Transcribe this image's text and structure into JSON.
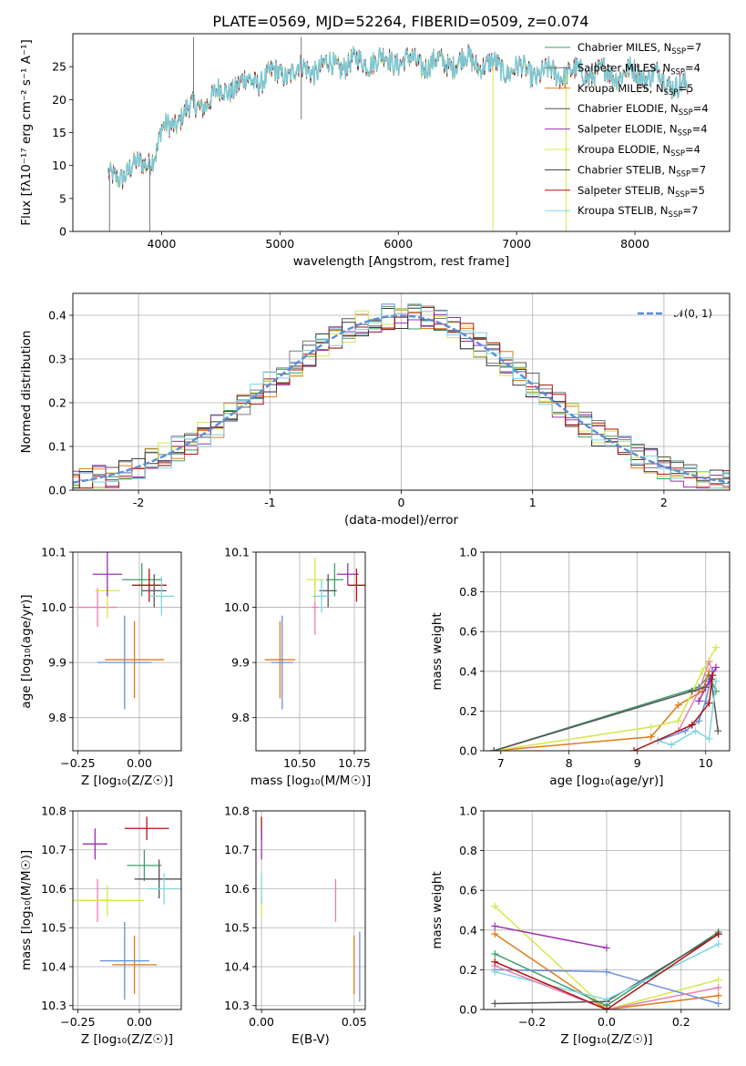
{
  "figure_title": "PLATE=0569, MJD=52264, FIBERID=0509, z=0.074",
  "models": [
    {
      "name": "Chabrier MILES",
      "nssp": "7",
      "color": "#3d9e6b"
    },
    {
      "name": "Salpeter MILES",
      "nssp": "4",
      "color": "#7a7a7a"
    },
    {
      "name": "Kroupa MILES",
      "nssp": "5",
      "color": "#e07b1a"
    },
    {
      "name": "Chabrier ELODIE",
      "nssp": "4",
      "color": "#555555"
    },
    {
      "name": "Salpeter ELODIE",
      "nssp": "4",
      "color": "#9b30b0"
    },
    {
      "name": "Kroupa ELODIE",
      "nssp": "4",
      "color": "#d4e84a"
    },
    {
      "name": "Chabrier STELIB",
      "nssp": "7",
      "color": "#3a3a3a"
    },
    {
      "name": "Salpeter STELIB",
      "nssp": "5",
      "color": "#b01010"
    },
    {
      "name": "Kroupa STELIB",
      "nssp": "7",
      "color": "#7fd6e0"
    }
  ],
  "extra_colors": {
    "pink": "#e87fb0",
    "blue": "#6b8fd8",
    "normal_line": "#5b8ed6"
  },
  "chart_data": [
    {
      "id": "spectrum",
      "type": "line",
      "xlabel": "wavelength [Angstrom, rest frame]",
      "ylabel_text": "Flux [fλ10⁻¹⁷ erg cm⁻² s⁻¹ A⁻¹]",
      "xlim": [
        3250,
        8800
      ],
      "ylim": [
        0,
        30
      ],
      "xticks": [
        4000,
        5000,
        6000,
        7000,
        8000
      ],
      "yticks": [
        0,
        5,
        10,
        15,
        20,
        25
      ],
      "continuum_x": [
        3550,
        3700,
        3900,
        3960,
        4000,
        4200,
        4400,
        4600,
        4800,
        5000,
        5200,
        5400,
        5600,
        5800,
        6000,
        6200,
        6400,
        6600,
        6800,
        7000,
        7200,
        7400,
        7600,
        7800,
        8000,
        8200,
        8450
      ],
      "continuum_y": [
        8,
        9,
        11,
        12,
        15,
        18,
        20,
        22,
        23,
        24,
        24.5,
        25,
        25.5,
        26,
        26,
        25.5,
        25.5,
        26,
        25,
        24.5,
        24,
        24,
        24,
        24,
        24,
        23.5,
        21.5
      ],
      "spikes": [
        {
          "x": 3560,
          "y": 0
        },
        {
          "x": 3900,
          "y": 0
        },
        {
          "x": 4270,
          "y": 29.5
        },
        {
          "x": 5180,
          "y": 29.5
        },
        {
          "x": 5180,
          "y": 17
        },
        {
          "x": 6800,
          "y": 0
        },
        {
          "x": 7420,
          "y": 0
        }
      ]
    },
    {
      "id": "residuals",
      "type": "bar",
      "xlabel": "(data-model)/error",
      "ylabel": "Normed distribution",
      "xlim": [
        -2.5,
        2.5
      ],
      "ylim": [
        0,
        0.45
      ],
      "xticks": [
        -2,
        -1,
        0,
        1,
        2
      ],
      "yticks": [
        0.0,
        0.1,
        0.2,
        0.3,
        0.4
      ],
      "bin_width": 0.1,
      "normal_label": "𝒩(0, 1)"
    },
    {
      "id": "age_vs_Z",
      "type": "scatter",
      "xlabel": "Z [log₁₀(Z/Z☉)]",
      "ylabel": "age  [log₁₀(age/yr)]",
      "xlim": [
        -0.27,
        0.17
      ],
      "ylim": [
        9.74,
        10.1
      ],
      "xticks": [
        -0.25,
        0.0
      ],
      "yticks": [
        9.8,
        9.9,
        10.0,
        10.1
      ],
      "points": [
        {
          "x": -0.02,
          "y": 9.905,
          "xerr": 0.12,
          "yerr": 0.07,
          "color": "#e07b1a"
        },
        {
          "x": -0.06,
          "y": 9.9,
          "xerr": 0.11,
          "yerr": 0.085,
          "color": "#6b8fd8"
        },
        {
          "x": -0.17,
          "y": 10.0,
          "xerr": 0.08,
          "yerr": 0.035,
          "color": "#e87fb0"
        },
        {
          "x": -0.13,
          "y": 10.03,
          "xerr": 0.05,
          "yerr": 0.05,
          "color": "#d4e84a"
        },
        {
          "x": -0.13,
          "y": 10.06,
          "xerr": 0.06,
          "yerr": 0.04,
          "color": "#9b30b0"
        },
        {
          "x": 0.01,
          "y": 10.05,
          "xerr": 0.08,
          "yerr": 0.03,
          "color": "#3d9e6b"
        },
        {
          "x": 0.04,
          "y": 10.04,
          "xerr": 0.07,
          "yerr": 0.03,
          "color": "#b01010"
        },
        {
          "x": 0.06,
          "y": 10.03,
          "xerr": 0.05,
          "yerr": 0.03,
          "color": "#555555"
        },
        {
          "x": 0.09,
          "y": 10.02,
          "xerr": 0.05,
          "yerr": 0.035,
          "color": "#7fd6e0"
        }
      ]
    },
    {
      "id": "age_vs_mass",
      "type": "scatter",
      "xlabel": "mass [log₁₀(M/M☉)]",
      "ylabel": "",
      "xlim": [
        10.3,
        10.8
      ],
      "ylim": [
        9.74,
        10.1
      ],
      "xticks": [
        10.5,
        10.75
      ],
      "yticks": [
        9.8,
        9.9,
        10.0,
        10.1
      ],
      "xticklabels": [
        "10.50",
        "10.75"
      ],
      "points": [
        {
          "x": 10.41,
          "y": 9.905,
          "xerr": 0.07,
          "yerr": 0.07,
          "color": "#e07b1a"
        },
        {
          "x": 10.42,
          "y": 9.9,
          "xerr": 0.05,
          "yerr": 0.085,
          "color": "#6b8fd8"
        },
        {
          "x": 10.57,
          "y": 10.0,
          "xerr": 0.015,
          "yerr": 0.05,
          "color": "#e87fb0"
        },
        {
          "x": 10.57,
          "y": 10.05,
          "xerr": 0.04,
          "yerr": 0.04,
          "color": "#d4e84a"
        },
        {
          "x": 10.72,
          "y": 10.06,
          "xerr": 0.05,
          "yerr": 0.02,
          "color": "#9b30b0"
        },
        {
          "x": 10.66,
          "y": 10.05,
          "xerr": 0.04,
          "yerr": 0.03,
          "color": "#3d9e6b"
        },
        {
          "x": 10.76,
          "y": 10.04,
          "xerr": 0.04,
          "yerr": 0.03,
          "color": "#b01010"
        },
        {
          "x": 10.63,
          "y": 10.03,
          "xerr": 0.04,
          "yerr": 0.03,
          "color": "#555555"
        },
        {
          "x": 10.6,
          "y": 10.02,
          "xerr": 0.04,
          "yerr": 0.03,
          "color": "#7fd6e0"
        }
      ]
    },
    {
      "id": "weight_vs_age",
      "type": "line",
      "xlabel": "age  [log₁₀(age/yr)]",
      "ylabel": "mass weight",
      "xlim": [
        6.75,
        10.35
      ],
      "ylim": [
        0,
        1
      ],
      "xticks": [
        7,
        8,
        9,
        10
      ],
      "yticks": [
        0.0,
        0.2,
        0.4,
        0.6,
        0.8,
        1.0
      ],
      "series": [
        {
          "color": "#3d9e6b",
          "x": [
            6.9,
            9.9,
            10.05,
            10.15
          ],
          "y": [
            0.0,
            0.32,
            0.38,
            0.3
          ]
        },
        {
          "color": "#e87fb0",
          "x": [
            9.6,
            9.9,
            10.05,
            10.1
          ],
          "y": [
            0.1,
            0.3,
            0.45,
            0.4
          ]
        },
        {
          "color": "#e07b1a",
          "x": [
            6.9,
            9.2,
            9.6,
            9.95,
            10.05
          ],
          "y": [
            0.0,
            0.07,
            0.23,
            0.3,
            0.4
          ]
        },
        {
          "color": "#d4e84a",
          "x": [
            6.9,
            9.2,
            9.6,
            9.95,
            10.15
          ],
          "y": [
            0.0,
            0.12,
            0.15,
            0.4,
            0.52
          ]
        },
        {
          "color": "#6b8fd8",
          "x": [
            9.3,
            9.7,
            9.9,
            10.0,
            10.1
          ],
          "y": [
            0.05,
            0.1,
            0.15,
            0.25,
            0.4
          ]
        },
        {
          "color": "#555555",
          "x": [
            6.9,
            9.8,
            10.0,
            10.08,
            10.18
          ],
          "y": [
            0.0,
            0.3,
            0.32,
            0.36,
            0.1
          ]
        },
        {
          "color": "#7fd6e0",
          "x": [
            9.3,
            9.5,
            9.85,
            10.05,
            10.15
          ],
          "y": [
            0.05,
            0.03,
            0.1,
            0.06,
            0.35
          ]
        },
        {
          "color": "#9b30b0",
          "x": [
            9.9,
            10.05,
            10.15
          ],
          "y": [
            0.25,
            0.35,
            0.42
          ]
        },
        {
          "color": "#b01010",
          "x": [
            8.95,
            9.8,
            10.05,
            10.1
          ],
          "y": [
            0.0,
            0.13,
            0.24,
            0.38
          ]
        }
      ]
    },
    {
      "id": "mass_vs_Z",
      "type": "scatter",
      "xlabel": "Z [log₁₀(Z/Z☉)]",
      "ylabel": "mass [log₁₀(M/M☉)]",
      "xlim": [
        -0.27,
        0.17
      ],
      "ylim": [
        10.29,
        10.8
      ],
      "xticks": [
        -0.25,
        0.0
      ],
      "yticks": [
        10.3,
        10.4,
        10.5,
        10.6,
        10.7,
        10.8
      ],
      "points": [
        {
          "x": -0.02,
          "y": 10.405,
          "xerr": 0.09,
          "yerr": 0.075,
          "color": "#e07b1a"
        },
        {
          "x": -0.06,
          "y": 10.415,
          "xerr": 0.1,
          "yerr": 0.1,
          "color": "#6b8fd8"
        },
        {
          "x": -0.17,
          "y": 10.57,
          "xerr": 0.06,
          "yerr": 0.055,
          "color": "#e87fb0"
        },
        {
          "x": -0.13,
          "y": 10.57,
          "xerr": 0.15,
          "yerr": 0.04,
          "color": "#d4e84a"
        },
        {
          "x": -0.18,
          "y": 10.715,
          "xerr": 0.05,
          "yerr": 0.04,
          "color": "#9b30b0"
        },
        {
          "x": 0.02,
          "y": 10.66,
          "xerr": 0.07,
          "yerr": 0.04,
          "color": "#3d9e6b"
        },
        {
          "x": 0.03,
          "y": 10.755,
          "xerr": 0.09,
          "yerr": 0.03,
          "color": "#b01010"
        },
        {
          "x": 0.08,
          "y": 10.625,
          "xerr": 0.1,
          "yerr": 0.05,
          "color": "#555555"
        },
        {
          "x": 0.1,
          "y": 10.6,
          "xerr": 0.07,
          "yerr": 0.04,
          "color": "#7fd6e0"
        }
      ]
    },
    {
      "id": "mass_vs_EBV",
      "type": "scatter",
      "xlabel": "E(B-V)",
      "ylabel": "",
      "xlim": [
        -0.003,
        0.056
      ],
      "ylim": [
        10.29,
        10.8
      ],
      "xticks": [
        0.0,
        0.05
      ],
      "yticks": [
        10.3,
        10.4,
        10.5,
        10.6,
        10.7,
        10.8
      ],
      "xticklabels": [
        "0.00",
        "0.05"
      ],
      "points": [
        {
          "x": 0.0,
          "y": 10.755,
          "xerr": 0,
          "yerr": 0.03,
          "color": "#b01010"
        },
        {
          "x": 0.0,
          "y": 10.715,
          "xerr": 0,
          "yerr": 0.04,
          "color": "#9b30b0"
        },
        {
          "x": 0.0,
          "y": 10.57,
          "xerr": 0,
          "yerr": 0.04,
          "color": "#d4e84a"
        },
        {
          "x": 0.0,
          "y": 10.6,
          "xerr": 0,
          "yerr": 0.04,
          "color": "#7fd6e0"
        },
        {
          "x": 0.04,
          "y": 10.57,
          "xerr": 0,
          "yerr": 0.055,
          "color": "#e87fb0"
        },
        {
          "x": 0.05,
          "y": 10.405,
          "xerr": 0,
          "yerr": 0.075,
          "color": "#e07b1a"
        },
        {
          "x": 0.053,
          "y": 10.4,
          "xerr": 0,
          "yerr": 0.09,
          "color": "#6b8fd8"
        }
      ]
    },
    {
      "id": "weight_vs_Z",
      "type": "line",
      "xlabel": "Z [log₁₀(Z/Z☉)]",
      "ylabel": "mass weight",
      "xlim": [
        -0.33,
        0.33
      ],
      "ylim": [
        0,
        1
      ],
      "xticks": [
        -0.2,
        0.0,
        0.2
      ],
      "yticks": [
        0.0,
        0.2,
        0.4,
        0.6,
        0.8,
        1.0
      ],
      "xticklabels": [
        "−0.2",
        "0.0",
        "0.2"
      ],
      "series": [
        {
          "color": "#d4e84a",
          "x": [
            -0.3,
            0.0,
            0.3
          ],
          "y": [
            0.52,
            0.0,
            0.15
          ]
        },
        {
          "color": "#e07b1a",
          "x": [
            -0.3,
            0.0,
            0.3
          ],
          "y": [
            0.38,
            0.0,
            0.07
          ]
        },
        {
          "color": "#9b30b0",
          "x": [
            -0.3,
            0.0
          ],
          "y": [
            0.42,
            0.31
          ]
        },
        {
          "color": "#3d9e6b",
          "x": [
            -0.3,
            0.0,
            0.3
          ],
          "y": [
            0.28,
            0.02,
            0.39
          ]
        },
        {
          "color": "#555555",
          "x": [
            -0.3,
            0.0,
            0.3
          ],
          "y": [
            0.03,
            0.04,
            0.38
          ]
        },
        {
          "color": "#6b8fd8",
          "x": [
            -0.3,
            0.0,
            0.3
          ],
          "y": [
            0.2,
            0.19,
            0.03
          ]
        },
        {
          "color": "#7fd6e0",
          "x": [
            -0.3,
            0.0,
            0.3
          ],
          "y": [
            0.19,
            0.05,
            0.33
          ]
        },
        {
          "color": "#e87fb0",
          "x": [
            -0.3,
            0.0,
            0.3
          ],
          "y": [
            0.22,
            0.0,
            0.11
          ]
        },
        {
          "color": "#b01010",
          "x": [
            -0.3,
            0.0,
            0.3
          ],
          "y": [
            0.24,
            0.0,
            0.38
          ]
        }
      ]
    }
  ]
}
